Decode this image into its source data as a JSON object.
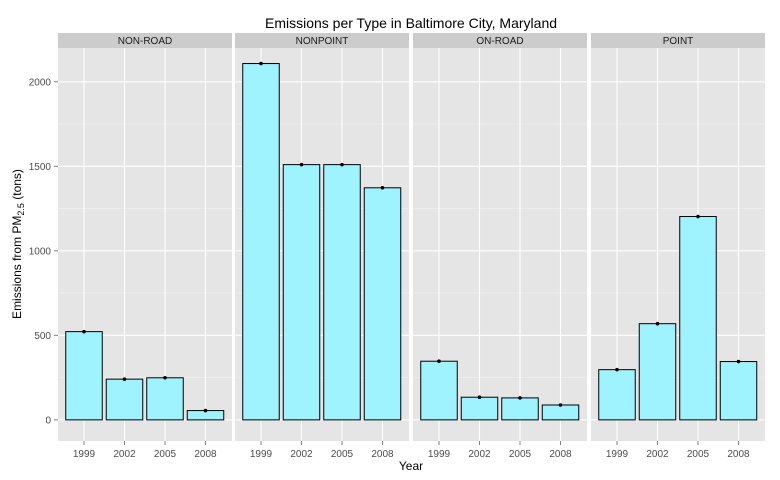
{
  "chart_data": {
    "type": "bar",
    "title": "Emissions per Type in Baltimore City, Maryland",
    "xlabel": "Year",
    "ylabel_main": "Emissions from PM",
    "ylabel_sub": "2.5",
    "ylabel_unit": " (tons)",
    "categories": [
      "1999",
      "2002",
      "2005",
      "2008"
    ],
    "ylim": [
      -125,
      2200
    ],
    "yticks": [
      0,
      500,
      1000,
      1500,
      2000
    ],
    "ytick_labels": [
      "0",
      "500",
      "1000",
      "1500",
      "2000"
    ],
    "grid": true,
    "bar_color": "#9ff3ff",
    "bar_outline": "#000000",
    "panel_bg": "#e5e5e5",
    "strip_bg": "#cccccc",
    "panels": [
      {
        "name": "NON-ROAD",
        "values": [
          522,
          241,
          249,
          55
        ]
      },
      {
        "name": "NONPOINT",
        "values": [
          2108,
          1510,
          1510,
          1373
        ]
      },
      {
        "name": "ON-ROAD",
        "values": [
          347,
          134,
          130,
          88
        ]
      },
      {
        "name": "POINT",
        "values": [
          297,
          569,
          1203,
          345
        ]
      }
    ]
  }
}
